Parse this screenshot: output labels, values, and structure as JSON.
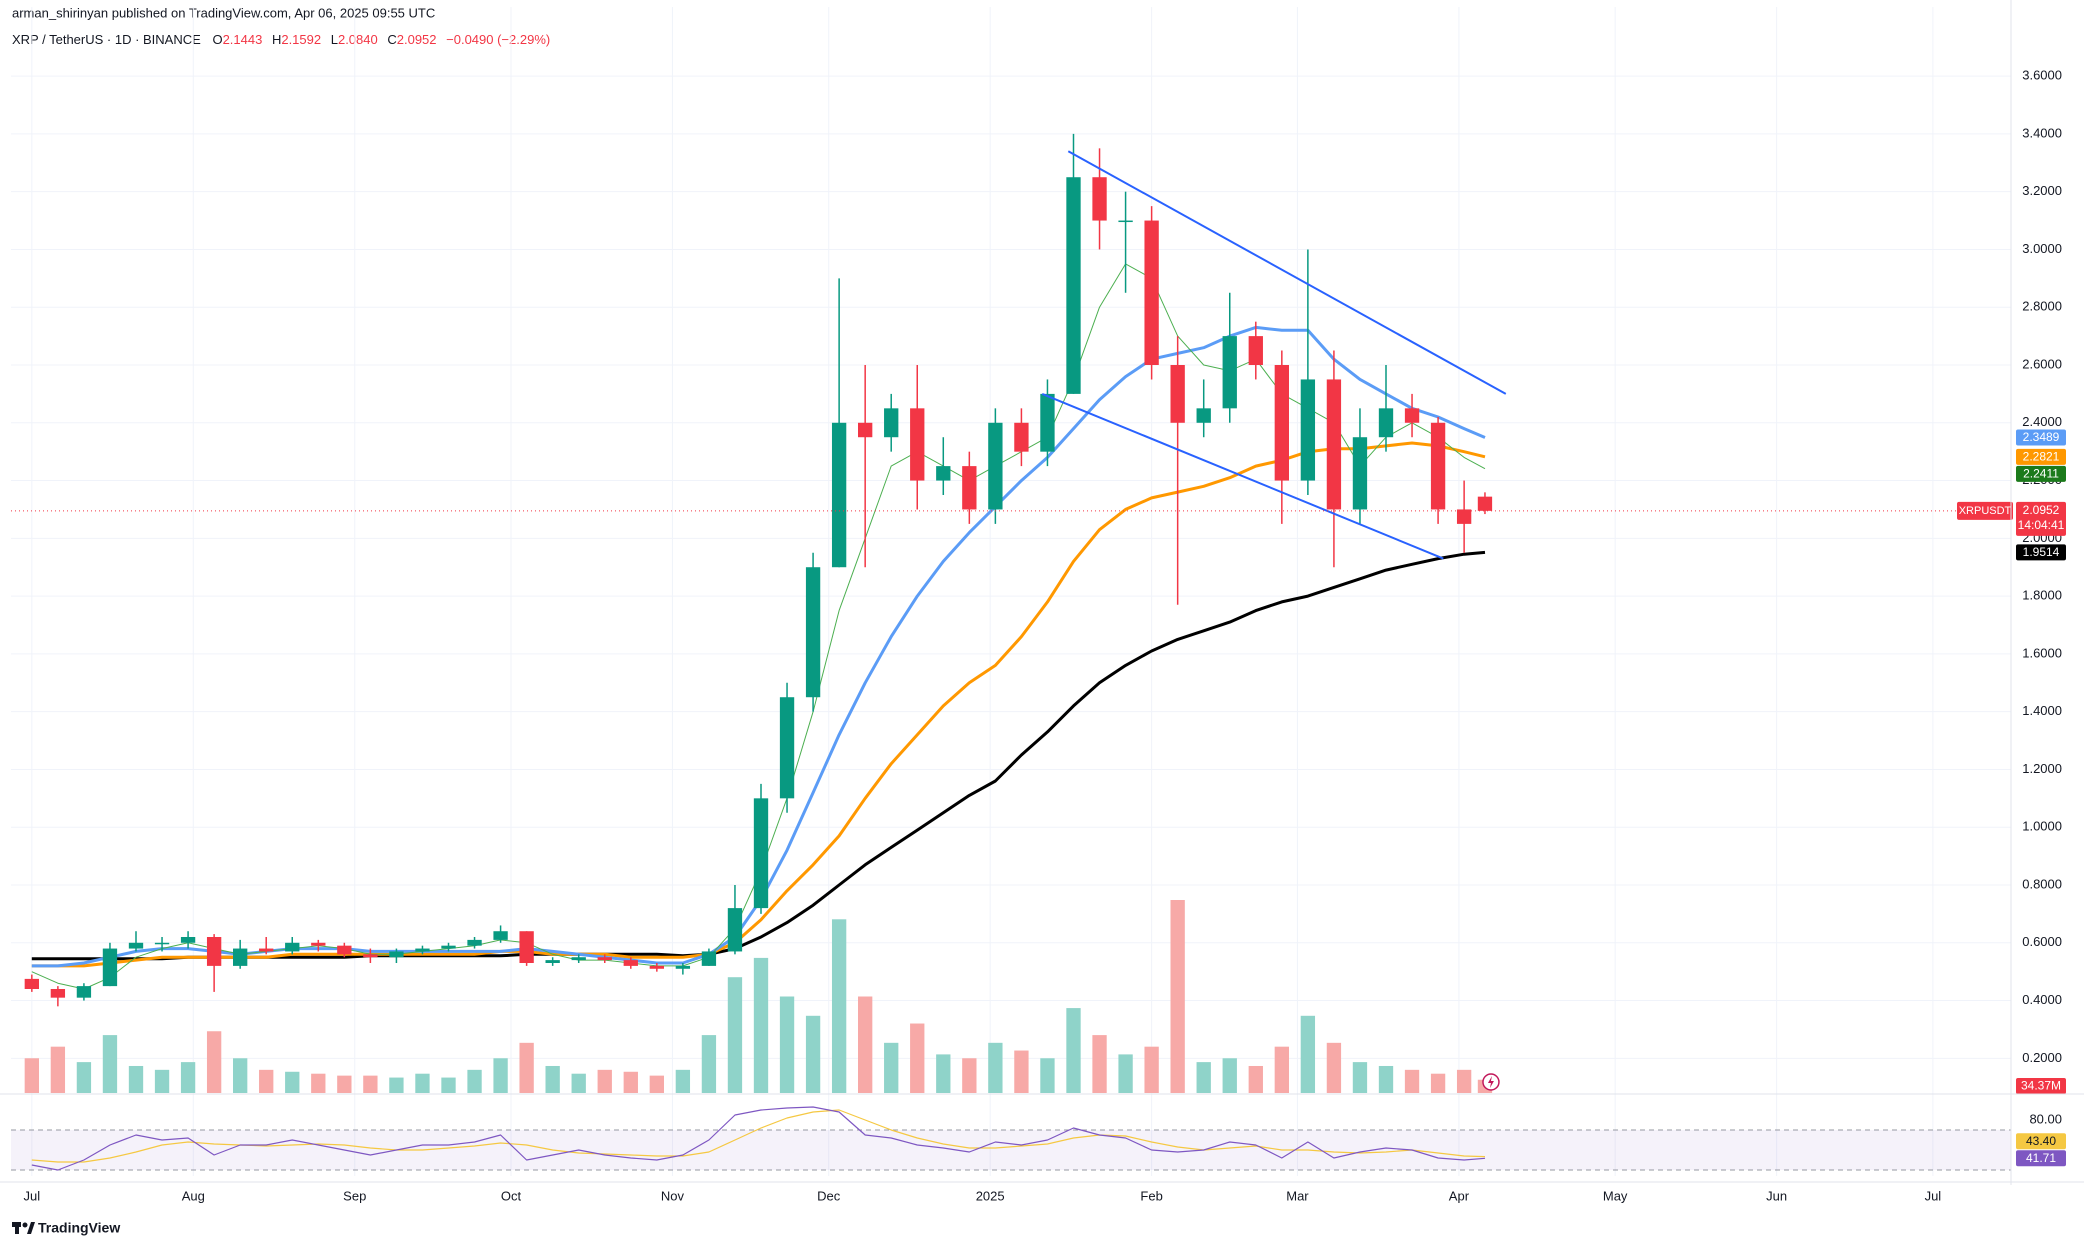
{
  "chart_data": {
    "type": "candlestick",
    "byline": "arman_shirinyan published on TradingView.com, Apr 06, 2025 09:55 UTC",
    "symbol": "XRP / TetherUS · 1D · BINANCE",
    "header": {
      "open_key": "O",
      "high_key": "H",
      "low_key": "L",
      "close_key": "C",
      "open": "2.1443",
      "high": "2.1592",
      "low": "2.0840",
      "close": "2.0952",
      "change": "−0.0490 (−2.29%)"
    },
    "name": "XRPUSDT",
    "countdown": "14:04:41",
    "up_color": "#089981",
    "down_color": "#f23645",
    "x": [
      "2024-07-01",
      "2024-07-06",
      "2024-07-11",
      "2024-07-16",
      "2024-07-21",
      "2024-07-26",
      "2024-07-31",
      "2024-08-05",
      "2024-08-10",
      "2024-08-15",
      "2024-08-20",
      "2024-08-25",
      "2024-08-30",
      "2024-09-04",
      "2024-09-09",
      "2024-09-14",
      "2024-09-19",
      "2024-09-24",
      "2024-09-29",
      "2024-10-04",
      "2024-10-09",
      "2024-10-14",
      "2024-10-19",
      "2024-10-24",
      "2024-10-29",
      "2024-11-03",
      "2024-11-08",
      "2024-11-13",
      "2024-11-18",
      "2024-11-23",
      "2024-11-28",
      "2024-12-03",
      "2024-12-08",
      "2024-12-13",
      "2024-12-18",
      "2024-12-23",
      "2024-12-28",
      "2025-01-02",
      "2025-01-07",
      "2025-01-12",
      "2025-01-17",
      "2025-01-22",
      "2025-01-27",
      "2025-02-01",
      "2025-02-06",
      "2025-02-11",
      "2025-02-16",
      "2025-02-21",
      "2025-02-26",
      "2025-03-03",
      "2025-03-08",
      "2025-03-13",
      "2025-03-18",
      "2025-03-23",
      "2025-03-28",
      "2025-04-02",
      "2025-04-06"
    ],
    "open": [
      0.475,
      0.44,
      0.41,
      0.45,
      0.58,
      0.6,
      0.6,
      0.62,
      0.52,
      0.58,
      0.57,
      0.6,
      0.59,
      0.56,
      0.55,
      0.57,
      0.58,
      0.59,
      0.61,
      0.64,
      0.53,
      0.54,
      0.55,
      0.54,
      0.52,
      0.51,
      0.52,
      0.57,
      0.72,
      1.1,
      1.45,
      1.9,
      2.4,
      2.35,
      2.45,
      2.2,
      2.25,
      2.1,
      2.4,
      2.3,
      2.5,
      3.25,
      3.1,
      3.1,
      2.6,
      2.4,
      2.45,
      2.7,
      2.6,
      2.2,
      2.55,
      2.1,
      2.35,
      2.45,
      2.4,
      2.1,
      2.1443
    ],
    "high": [
      0.49,
      0.45,
      0.46,
      0.6,
      0.64,
      0.62,
      0.64,
      0.63,
      0.61,
      0.62,
      0.62,
      0.61,
      0.6,
      0.58,
      0.58,
      0.59,
      0.6,
      0.62,
      0.66,
      0.64,
      0.55,
      0.56,
      0.56,
      0.55,
      0.53,
      0.53,
      0.58,
      0.8,
      1.15,
      1.5,
      1.95,
      2.9,
      2.6,
      2.5,
      2.6,
      2.35,
      2.3,
      2.45,
      2.45,
      2.55,
      3.4,
      3.35,
      3.2,
      3.15,
      2.7,
      2.55,
      2.85,
      2.75,
      2.65,
      3.0,
      2.65,
      2.45,
      2.6,
      2.5,
      2.42,
      2.2,
      2.1592
    ],
    "low": [
      0.43,
      0.38,
      0.4,
      0.45,
      0.57,
      0.57,
      0.58,
      0.43,
      0.51,
      0.56,
      0.56,
      0.57,
      0.55,
      0.53,
      0.53,
      0.56,
      0.57,
      0.58,
      0.6,
      0.52,
      0.52,
      0.53,
      0.53,
      0.51,
      0.5,
      0.49,
      0.52,
      0.56,
      0.7,
      1.05,
      1.4,
      1.9,
      1.9,
      2.3,
      2.1,
      2.15,
      2.05,
      2.05,
      2.25,
      2.25,
      2.5,
      3.0,
      2.85,
      2.55,
      1.77,
      2.35,
      2.4,
      2.55,
      2.05,
      2.15,
      1.9,
      2.05,
      2.3,
      2.35,
      2.05,
      1.95,
      2.084
    ],
    "close": [
      0.44,
      0.41,
      0.45,
      0.58,
      0.6,
      0.6,
      0.62,
      0.52,
      0.58,
      0.57,
      0.6,
      0.59,
      0.56,
      0.55,
      0.57,
      0.58,
      0.59,
      0.61,
      0.64,
      0.53,
      0.54,
      0.55,
      0.54,
      0.52,
      0.51,
      0.52,
      0.57,
      0.72,
      1.1,
      1.45,
      1.9,
      2.4,
      2.35,
      2.45,
      2.2,
      2.25,
      2.1,
      2.4,
      2.3,
      2.5,
      3.25,
      3.1,
      3.1,
      2.6,
      2.4,
      2.45,
      2.7,
      2.6,
      2.2,
      2.55,
      2.1,
      2.35,
      2.45,
      2.4,
      2.1,
      2.05,
      2.0952
    ],
    "moving_averages": [
      {
        "color": "#4caf50",
        "width": 1,
        "values": [
          0.5,
          0.46,
          0.44,
          0.48,
          0.55,
          0.58,
          0.6,
          0.58,
          0.56,
          0.57,
          0.58,
          0.59,
          0.58,
          0.56,
          0.56,
          0.57,
          0.58,
          0.59,
          0.61,
          0.6,
          0.56,
          0.54,
          0.54,
          0.53,
          0.52,
          0.52,
          0.55,
          0.65,
          0.85,
          1.1,
          1.4,
          1.75,
          2.0,
          2.25,
          2.3,
          2.25,
          2.2,
          2.25,
          2.3,
          2.35,
          2.55,
          2.8,
          2.95,
          2.9,
          2.7,
          2.6,
          2.58,
          2.62,
          2.5,
          2.45,
          2.4,
          2.25,
          2.35,
          2.4,
          2.35,
          2.28,
          2.2411
        ],
        "tag_color": "#1b7a1b"
      },
      {
        "color": "#5b9cf6",
        "width": 3,
        "values": [
          0.52,
          0.52,
          0.53,
          0.55,
          0.57,
          0.58,
          0.58,
          0.57,
          0.56,
          0.57,
          0.58,
          0.58,
          0.58,
          0.57,
          0.57,
          0.57,
          0.57,
          0.57,
          0.57,
          0.58,
          0.57,
          0.56,
          0.55,
          0.54,
          0.53,
          0.53,
          0.56,
          0.62,
          0.75,
          0.92,
          1.12,
          1.32,
          1.5,
          1.66,
          1.8,
          1.92,
          2.02,
          2.11,
          2.2,
          2.28,
          2.38,
          2.48,
          2.56,
          2.62,
          2.64,
          2.66,
          2.7,
          2.73,
          2.72,
          2.72,
          2.62,
          2.55,
          2.5,
          2.45,
          2.42,
          2.38,
          2.3489
        ],
        "tag_color": "#5b9cf6"
      },
      {
        "color": "#ff9800",
        "width": 3,
        "values": [
          0.52,
          0.52,
          0.52,
          0.53,
          0.54,
          0.55,
          0.55,
          0.55,
          0.55,
          0.55,
          0.56,
          0.56,
          0.56,
          0.56,
          0.56,
          0.56,
          0.56,
          0.56,
          0.57,
          0.57,
          0.56,
          0.56,
          0.56,
          0.55,
          0.55,
          0.55,
          0.56,
          0.6,
          0.68,
          0.78,
          0.87,
          0.97,
          1.1,
          1.22,
          1.32,
          1.42,
          1.5,
          1.56,
          1.66,
          1.78,
          1.92,
          2.03,
          2.1,
          2.14,
          2.16,
          2.18,
          2.21,
          2.25,
          2.27,
          2.3,
          2.31,
          2.31,
          2.32,
          2.33,
          2.32,
          2.3,
          2.2821
        ],
        "tag_color": "#ff9800"
      },
      {
        "color": "#000000",
        "width": 3,
        "values": [
          0.545,
          0.545,
          0.545,
          0.545,
          0.545,
          0.545,
          0.55,
          0.55,
          0.55,
          0.55,
          0.55,
          0.55,
          0.55,
          0.555,
          0.555,
          0.555,
          0.555,
          0.555,
          0.555,
          0.56,
          0.56,
          0.56,
          0.56,
          0.56,
          0.56,
          0.555,
          0.56,
          0.58,
          0.62,
          0.67,
          0.73,
          0.8,
          0.87,
          0.93,
          0.99,
          1.05,
          1.11,
          1.16,
          1.25,
          1.33,
          1.42,
          1.5,
          1.56,
          1.61,
          1.65,
          1.68,
          1.71,
          1.75,
          1.78,
          1.8,
          1.83,
          1.86,
          1.89,
          1.91,
          1.93,
          1.945,
          1.9514
        ],
        "tag_color": "#000000"
      }
    ],
    "trendlines": [
      {
        "color": "#2962ff",
        "x": [
          "2025-01-16",
          "2025-04-10"
        ],
        "y": [
          3.34,
          2.5
        ]
      },
      {
        "color": "#2962ff",
        "x": [
          "2025-01-11",
          "2025-03-29"
        ],
        "y": [
          2.5,
          1.93
        ]
      }
    ],
    "volume": {
      "values": [
        90,
        120,
        80,
        150,
        70,
        60,
        80,
        160,
        90,
        60,
        55,
        50,
        45,
        45,
        40,
        50,
        40,
        60,
        90,
        130,
        70,
        50,
        60,
        55,
        45,
        60,
        150,
        300,
        350,
        250,
        200,
        450,
        250,
        130,
        180,
        100,
        90,
        130,
        110,
        90,
        220,
        150,
        100,
        120,
        500,
        80,
        90,
        70,
        120,
        200,
        130,
        80,
        70,
        60,
        50,
        60,
        34.37
      ],
      "last_label": "34.37M",
      "up_color": "#8fd3c9",
      "down_color": "#f7a9a7"
    },
    "xlim": [
      "2024-06-27",
      "2025-07-16"
    ],
    "xticks": [
      {
        "value": "2024-07-01",
        "label": "Jul"
      },
      {
        "value": "2024-08-01",
        "label": "Aug"
      },
      {
        "value": "2024-09-01",
        "label": "Sep"
      },
      {
        "value": "2024-10-01",
        "label": "Oct"
      },
      {
        "value": "2024-11-01",
        "label": "Nov"
      },
      {
        "value": "2024-12-01",
        "label": "Dec"
      },
      {
        "value": "2025-01-01",
        "label": "2025"
      },
      {
        "value": "2025-02-01",
        "label": "Feb"
      },
      {
        "value": "2025-03-01",
        "label": "Mar"
      },
      {
        "value": "2025-04-01",
        "label": "Apr"
      },
      {
        "value": "2025-05-01",
        "label": "May"
      },
      {
        "value": "2025-06-01",
        "label": "Jun"
      },
      {
        "value": "2025-07-01",
        "label": "Jul"
      }
    ],
    "ylim": [
      0.08,
      3.77
    ],
    "yticks": [
      {
        "value": 0.2,
        "label": "0.2000"
      },
      {
        "value": 0.4,
        "label": "0.4000"
      },
      {
        "value": 0.6,
        "label": "0.6000"
      },
      {
        "value": 0.8,
        "label": "0.8000"
      },
      {
        "value": 1.0,
        "label": "1.0000"
      },
      {
        "value": 1.2,
        "label": "1.2000"
      },
      {
        "value": 1.4,
        "label": "1.4000"
      },
      {
        "value": 1.6,
        "label": "1.6000"
      },
      {
        "value": 1.8,
        "label": "1.8000"
      },
      {
        "value": 2.0,
        "label": "2.0000"
      },
      {
        "value": 2.2,
        "label": "2.2000"
      },
      {
        "value": 2.4,
        "label": "2.4000"
      },
      {
        "value": 2.6,
        "label": "2.6000"
      },
      {
        "value": 2.8,
        "label": "2.8000"
      },
      {
        "value": 3.0,
        "label": "3.0000"
      },
      {
        "value": 3.2,
        "label": "3.2000"
      },
      {
        "value": 3.4,
        "label": "3.4000"
      },
      {
        "value": 3.6,
        "label": "3.6000"
      }
    ],
    "grid": true,
    "rsi": {
      "ylim": [
        24,
        104
      ],
      "yticks": [
        {
          "value": 80,
          "label": "80.00"
        }
      ],
      "bands": [
        30,
        70
      ],
      "band_color": "#7e57c2",
      "series": [
        {
          "color": "#7e57c2",
          "values": [
            35,
            30,
            40,
            55,
            65,
            60,
            62,
            45,
            55,
            55,
            60,
            55,
            50,
            45,
            50,
            55,
            55,
            58,
            65,
            40,
            45,
            50,
            45,
            42,
            40,
            45,
            60,
            85,
            90,
            92,
            93,
            88,
            65,
            62,
            55,
            52,
            48,
            58,
            55,
            60,
            72,
            65,
            62,
            50,
            48,
            50,
            58,
            55,
            42,
            58,
            42,
            48,
            52,
            50,
            42,
            40,
            41.71
          ],
          "last_label": "41.71"
        },
        {
          "color": "#f5c842",
          "values": [
            40,
            38,
            38,
            42,
            48,
            55,
            58,
            56,
            55,
            54,
            55,
            56,
            55,
            52,
            50,
            50,
            52,
            54,
            57,
            55,
            50,
            47,
            46,
            45,
            44,
            44,
            48,
            60,
            72,
            82,
            88,
            90,
            80,
            70,
            62,
            56,
            52,
            52,
            54,
            56,
            62,
            65,
            64,
            58,
            53,
            50,
            52,
            54,
            50,
            50,
            48,
            47,
            48,
            50,
            47,
            44,
            43.4
          ],
          "last_label": "43.40"
        }
      ]
    },
    "footer": "TradingView"
  }
}
